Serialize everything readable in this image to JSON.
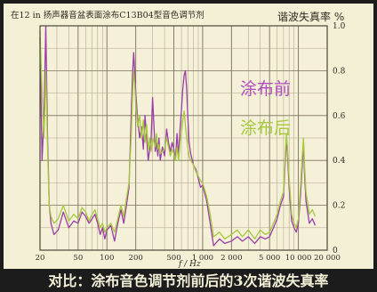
{
  "caption": "对比：涂布音色调节剂前后的3次谐波失真率",
  "chart_data": {
    "type": "line",
    "title": "在12 in 扬声器音盆表面涂布C13B04型音色调节剂",
    "ylabel": "谐波失真率 %",
    "xlabel": "f / Hz",
    "xscale": "log",
    "xlim": [
      20,
      20000
    ],
    "ylim": [
      0,
      1.0
    ],
    "x_tick_labels": [
      {
        "value": 20,
        "label": "20"
      },
      {
        "value": 50,
        "label": "50"
      },
      {
        "value": 100,
        "label": "100"
      },
      {
        "value": 200,
        "label": "200"
      },
      {
        "value": 500,
        "label": "500"
      },
      {
        "value": 1000,
        "label": "1 000"
      },
      {
        "value": 2000,
        "label": "2 000"
      },
      {
        "value": 5000,
        "label": "5 000"
      },
      {
        "value": 10000,
        "label": "10 000"
      },
      {
        "value": 20000,
        "label": "20 000"
      }
    ],
    "y_ticks": [
      0,
      0.2,
      0.4,
      0.6,
      0.8,
      1.0
    ],
    "y_tick_labels": [
      "0",
      "0.2",
      "0.4",
      "0.6",
      "0.8",
      "1.0"
    ],
    "grid": true,
    "series": [
      {
        "name": "涂布前",
        "color": "#9a3ea6",
        "points": [
          [
            20,
            0.95
          ],
          [
            21,
            0.4
          ],
          [
            22,
            0.6
          ],
          [
            23,
            1.0
          ],
          [
            24,
            0.5
          ],
          [
            25,
            0.2
          ],
          [
            26,
            0.12
          ],
          [
            28,
            0.07
          ],
          [
            31,
            0.09
          ],
          [
            35,
            0.17
          ],
          [
            40,
            0.1
          ],
          [
            45,
            0.13
          ],
          [
            50,
            0.12
          ],
          [
            55,
            0.17
          ],
          [
            60,
            0.15
          ],
          [
            65,
            0.12
          ],
          [
            70,
            0.14
          ],
          [
            75,
            0.16
          ],
          [
            80,
            0.12
          ],
          [
            85,
            0.07
          ],
          [
            90,
            0.1
          ],
          [
            95,
            0.05
          ],
          [
            100,
            0.09
          ],
          [
            110,
            0.11
          ],
          [
            120,
            0.04
          ],
          [
            130,
            0.12
          ],
          [
            140,
            0.18
          ],
          [
            150,
            0.12
          ],
          [
            160,
            0.2
          ],
          [
            170,
            0.28
          ],
          [
            180,
            0.62
          ],
          [
            185,
            0.78
          ],
          [
            190,
            0.88
          ],
          [
            195,
            0.8
          ],
          [
            200,
            0.7
          ],
          [
            210,
            0.58
          ],
          [
            220,
            0.5
          ],
          [
            230,
            0.55
          ],
          [
            240,
            0.45
          ],
          [
            250,
            0.6
          ],
          [
            260,
            0.5
          ],
          [
            270,
            0.4
          ],
          [
            280,
            0.45
          ],
          [
            290,
            0.5
          ],
          [
            300,
            0.68
          ],
          [
            310,
            0.55
          ],
          [
            320,
            0.44
          ],
          [
            330,
            0.48
          ],
          [
            340,
            0.42
          ],
          [
            350,
            0.5
          ],
          [
            360,
            0.4
          ],
          [
            380,
            0.46
          ],
          [
            400,
            0.42
          ],
          [
            420,
            0.54
          ],
          [
            440,
            0.48
          ],
          [
            460,
            0.44
          ],
          [
            480,
            0.48
          ],
          [
            500,
            0.45
          ],
          [
            520,
            0.4
          ],
          [
            540,
            0.52
          ],
          [
            560,
            0.42
          ],
          [
            580,
            0.54
          ],
          [
            600,
            0.62
          ],
          [
            620,
            0.72
          ],
          [
            640,
            0.78
          ],
          [
            660,
            0.8
          ],
          [
            680,
            0.72
          ],
          [
            700,
            0.6
          ],
          [
            720,
            0.48
          ],
          [
            750,
            0.43
          ],
          [
            800,
            0.38
          ],
          [
            850,
            0.36
          ],
          [
            900,
            0.32
          ],
          [
            950,
            0.28
          ],
          [
            1000,
            0.29
          ],
          [
            1100,
            0.22
          ],
          [
            1200,
            0.12
          ],
          [
            1300,
            0.02
          ],
          [
            1500,
            0.05
          ],
          [
            1700,
            0.03
          ],
          [
            2000,
            0.04
          ],
          [
            2300,
            0.06
          ],
          [
            2600,
            0.04
          ],
          [
            3000,
            0.06
          ],
          [
            3500,
            0.03
          ],
          [
            4000,
            0.06
          ],
          [
            4500,
            0.05
          ],
          [
            5000,
            0.06
          ],
          [
            5500,
            0.1
          ],
          [
            6000,
            0.14
          ],
          [
            6500,
            0.2
          ],
          [
            7000,
            0.24
          ],
          [
            7200,
            0.35
          ],
          [
            7500,
            0.5
          ],
          [
            7700,
            0.42
          ],
          [
            8000,
            0.28
          ],
          [
            8500,
            0.13
          ],
          [
            9000,
            0.1
          ],
          [
            9500,
            0.08
          ],
          [
            10000,
            0.12
          ],
          [
            10500,
            0.24
          ],
          [
            11000,
            0.38
          ],
          [
            11300,
            0.48
          ],
          [
            11600,
            0.34
          ],
          [
            12000,
            0.22
          ],
          [
            13000,
            0.12
          ],
          [
            14000,
            0.14
          ],
          [
            15000,
            0.11
          ]
        ]
      },
      {
        "name": "涂布后",
        "color": "#a6c83c",
        "points": [
          [
            20,
            0.98
          ],
          [
            21,
            0.7
          ],
          [
            22,
            0.5
          ],
          [
            23,
            0.8
          ],
          [
            24,
            0.45
          ],
          [
            25,
            0.2
          ],
          [
            26,
            0.15
          ],
          [
            28,
            0.12
          ],
          [
            31,
            0.14
          ],
          [
            35,
            0.2
          ],
          [
            40,
            0.13
          ],
          [
            45,
            0.16
          ],
          [
            50,
            0.14
          ],
          [
            55,
            0.19
          ],
          [
            60,
            0.17
          ],
          [
            65,
            0.13
          ],
          [
            70,
            0.16
          ],
          [
            75,
            0.18
          ],
          [
            80,
            0.14
          ],
          [
            85,
            0.1
          ],
          [
            90,
            0.12
          ],
          [
            95,
            0.08
          ],
          [
            100,
            0.1
          ],
          [
            110,
            0.12
          ],
          [
            120,
            0.08
          ],
          [
            130,
            0.14
          ],
          [
            140,
            0.2
          ],
          [
            150,
            0.15
          ],
          [
            160,
            0.23
          ],
          [
            170,
            0.3
          ],
          [
            180,
            0.52
          ],
          [
            185,
            0.68
          ],
          [
            190,
            0.8
          ],
          [
            195,
            0.74
          ],
          [
            200,
            0.65
          ],
          [
            210,
            0.55
          ],
          [
            220,
            0.6
          ],
          [
            230,
            0.5
          ],
          [
            240,
            0.58
          ],
          [
            250,
            0.48
          ],
          [
            260,
            0.56
          ],
          [
            270,
            0.45
          ],
          [
            280,
            0.5
          ],
          [
            290,
            0.44
          ],
          [
            300,
            0.5
          ],
          [
            310,
            0.48
          ],
          [
            320,
            0.46
          ],
          [
            330,
            0.52
          ],
          [
            340,
            0.45
          ],
          [
            350,
            0.47
          ],
          [
            360,
            0.43
          ],
          [
            380,
            0.44
          ],
          [
            400,
            0.45
          ],
          [
            420,
            0.5
          ],
          [
            440,
            0.46
          ],
          [
            460,
            0.42
          ],
          [
            480,
            0.45
          ],
          [
            500,
            0.43
          ],
          [
            520,
            0.4
          ],
          [
            540,
            0.46
          ],
          [
            560,
            0.4
          ],
          [
            580,
            0.48
          ],
          [
            600,
            0.52
          ],
          [
            620,
            0.58
          ],
          [
            640,
            0.62
          ],
          [
            660,
            0.56
          ],
          [
            680,
            0.5
          ],
          [
            700,
            0.46
          ],
          [
            720,
            0.42
          ],
          [
            750,
            0.4
          ],
          [
            800,
            0.38
          ],
          [
            850,
            0.35
          ],
          [
            900,
            0.33
          ],
          [
            950,
            0.31
          ],
          [
            1000,
            0.3
          ],
          [
            1100,
            0.24
          ],
          [
            1200,
            0.16
          ],
          [
            1300,
            0.06
          ],
          [
            1500,
            0.08
          ],
          [
            1700,
            0.05
          ],
          [
            2000,
            0.07
          ],
          [
            2300,
            0.09
          ],
          [
            2600,
            0.06
          ],
          [
            3000,
            0.09
          ],
          [
            3500,
            0.05
          ],
          [
            4000,
            0.09
          ],
          [
            4500,
            0.07
          ],
          [
            5000,
            0.08
          ],
          [
            5500,
            0.12
          ],
          [
            6000,
            0.16
          ],
          [
            6500,
            0.22
          ],
          [
            7000,
            0.26
          ],
          [
            7200,
            0.38
          ],
          [
            7500,
            0.52
          ],
          [
            7700,
            0.45
          ],
          [
            8000,
            0.32
          ],
          [
            8500,
            0.16
          ],
          [
            9000,
            0.12
          ],
          [
            9500,
            0.1
          ],
          [
            10000,
            0.14
          ],
          [
            10500,
            0.28
          ],
          [
            11000,
            0.42
          ],
          [
            11300,
            0.5
          ],
          [
            11600,
            0.38
          ],
          [
            12000,
            0.26
          ],
          [
            13000,
            0.16
          ],
          [
            14000,
            0.18
          ],
          [
            15000,
            0.15
          ]
        ]
      }
    ],
    "annotations": [
      {
        "text": "涂布前",
        "color": "#b14cc0"
      },
      {
        "text": "涂布后",
        "color": "#a6c83c"
      }
    ]
  }
}
